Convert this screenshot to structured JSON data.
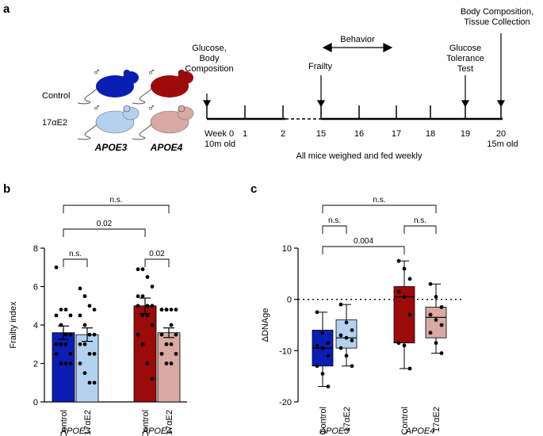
{
  "panel_labels": {
    "a": "a",
    "b": "b",
    "c": "c"
  },
  "timeline": {
    "groups": [
      "Control",
      "17αE2"
    ],
    "genotypes": [
      "APOE3",
      "APOE4"
    ],
    "male_symbol": "♂",
    "colors": {
      "apoe3_control": "#0a1eb4",
      "apoe3_treated": "#b4d2f0",
      "apoe4_control": "#9c0a0a",
      "apoe4_treated": "#d9a9a4"
    },
    "ticks": [
      {
        "label": "Week 0",
        "sub": "10m old"
      },
      {
        "label": "1"
      },
      {
        "label": "2"
      },
      {
        "label": "15"
      },
      {
        "label": "16"
      },
      {
        "label": "17"
      },
      {
        "label": "18"
      },
      {
        "label": "19"
      },
      {
        "label": "20",
        "sub": "15m old"
      }
    ],
    "events": {
      "glucose_body": [
        "Glucose,",
        "Body",
        "Composition"
      ],
      "behavior": "Behavior",
      "frailty": "Frailty",
      "glucose_tolerance": [
        "Glucose",
        "Tolerance",
        "Test"
      ],
      "final": [
        "Body Composition,",
        "Tissue Collection"
      ]
    },
    "footer": "All mice weighed and fed weekly"
  },
  "chart_data": [
    {
      "type": "bar",
      "panel": "b",
      "ylabel": "Frailty index",
      "ylim": [
        0,
        8
      ],
      "yticks": [
        "0",
        "2",
        "4",
        "6",
        "8"
      ],
      "categories": [
        "Control",
        "17αE2",
        "Control",
        "17αE2"
      ],
      "group_labels": [
        "APOE3",
        "APOE4"
      ],
      "values": [
        3.6,
        3.5,
        5.0,
        3.6
      ],
      "sem": [
        0.35,
        0.35,
        0.4,
        0.25
      ],
      "points": [
        [
          7.0,
          4.8,
          4.8,
          4.5,
          4.5,
          4.0,
          3.5,
          3.5,
          3.0,
          3.0,
          3.0,
          2.5,
          2.5,
          2.0,
          2.0,
          2.0
        ],
        [
          5.9,
          5.5,
          5.0,
          4.8,
          4.5,
          4.0,
          3.5,
          3.5,
          3.0,
          3.0,
          2.5,
          2.5,
          2.0,
          1.5,
          1.0,
          1.0
        ],
        [
          6.9,
          6.9,
          6.5,
          6.0,
          5.5,
          5.5,
          5.0,
          5.0,
          5.0,
          4.5,
          4.5,
          4.0,
          3.5,
          3.0,
          2.0,
          1.2
        ],
        [
          4.8,
          4.8,
          4.8,
          4.8,
          4.8,
          4.8,
          4.0,
          3.5,
          3.5,
          3.0,
          3.0,
          2.5,
          2.5,
          2.0,
          2.0
        ]
      ],
      "significance": [
        {
          "from": 0,
          "to": 1,
          "label": "n.s."
        },
        {
          "from": 0,
          "to": 2,
          "label": "0.02"
        },
        {
          "from": 2,
          "to": 3,
          "label": "0.02"
        },
        {
          "from": 0,
          "to": 3,
          "label": "n.s."
        }
      ]
    },
    {
      "type": "box",
      "panel": "c",
      "ylabel": "ΔDNAge",
      "ylim": [
        -20,
        10
      ],
      "yticks": [
        "10",
        "0",
        "-10",
        "-20"
      ],
      "categories": [
        "Control",
        "17αE2",
        "Control",
        "17αE2"
      ],
      "group_labels": [
        "APOE3",
        "APOE4"
      ],
      "boxes": [
        {
          "min": -17.0,
          "q1": -13.0,
          "median": -9.5,
          "q3": -6.0,
          "max": -2.5
        },
        {
          "min": -13.0,
          "q1": -9.5,
          "median": -7.5,
          "q3": -4.0,
          "max": -1.0
        },
        {
          "min": -13.5,
          "q1": -8.5,
          "median": 0.5,
          "q3": 2.5,
          "max": 7.5
        },
        {
          "min": -10.5,
          "q1": -7.5,
          "median": -3.5,
          "q3": -1.5,
          "max": 3.0
        }
      ],
      "points": [
        [
          -2.5,
          -6.5,
          -8.5,
          -9.0,
          -9.5,
          -11.0,
          -13.0,
          -14.5,
          -17.0
        ],
        [
          -1.0,
          -4.5,
          -6.0,
          -7.0,
          -7.5,
          -8.0,
          -9.5,
          -11.0,
          -13.0
        ],
        [
          7.5,
          6.0,
          4.0,
          1.5,
          0.5,
          -3.0,
          -8.5,
          -9.0,
          -13.5
        ],
        [
          3.0,
          0.5,
          -1.5,
          -3.0,
          -4.0,
          -5.0,
          -6.5,
          -8.5,
          -10.5
        ]
      ],
      "significance": [
        {
          "from": 0,
          "to": 1,
          "label": "n.s."
        },
        {
          "from": 0,
          "to": 2,
          "label": "0.004"
        },
        {
          "from": 2,
          "to": 3,
          "label": "n.s."
        },
        {
          "from": 0,
          "to": 3,
          "label": "n.s."
        }
      ]
    }
  ]
}
